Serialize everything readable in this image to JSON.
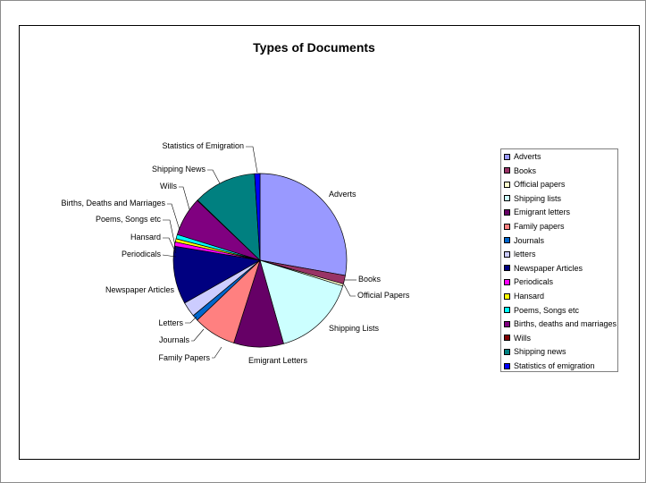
{
  "chart_data": {
    "type": "pie",
    "title": "Types of Documents",
    "categories": [
      "Adverts",
      "Books",
      "Official Papers",
      "Shipping Lists",
      "Emigrant Letters",
      "Family Papers",
      "Journals",
      "Letters",
      "Newspaper Articles",
      "Periodicals",
      "Hansard",
      "Poems, Songs etc",
      "Births, Deaths and Marriages",
      "Wills",
      "Shipping News",
      "Statistics of Emigration"
    ],
    "values": [
      27.8,
      1.6,
      0.4,
      15.8,
      9.3,
      8.0,
      1.1,
      2.8,
      10.8,
      0.8,
      0.6,
      0.8,
      7.3,
      0.1,
      11.8,
      1.0
    ],
    "colors": [
      "#9999ff",
      "#993366",
      "#ffffcc",
      "#ccffff",
      "#660066",
      "#ff8080",
      "#0066cc",
      "#ccccff",
      "#000080",
      "#ff00ff",
      "#ffff00",
      "#00ffff",
      "#800080",
      "#800000",
      "#008080",
      "#0000ff"
    ],
    "legend": {
      "position": "right",
      "entries": [
        "Adverts",
        "Books",
        "Official papers",
        "Shipping lists",
        "Emigrant letters",
        "Family papers",
        "Journals",
        "letters",
        "Newspaper Articles",
        "Periodicals",
        "Hansard",
        "Poems, Songs etc",
        "Births, deaths and marriages",
        "Wills",
        "Shipping news",
        "Statistics of emigration"
      ]
    }
  }
}
